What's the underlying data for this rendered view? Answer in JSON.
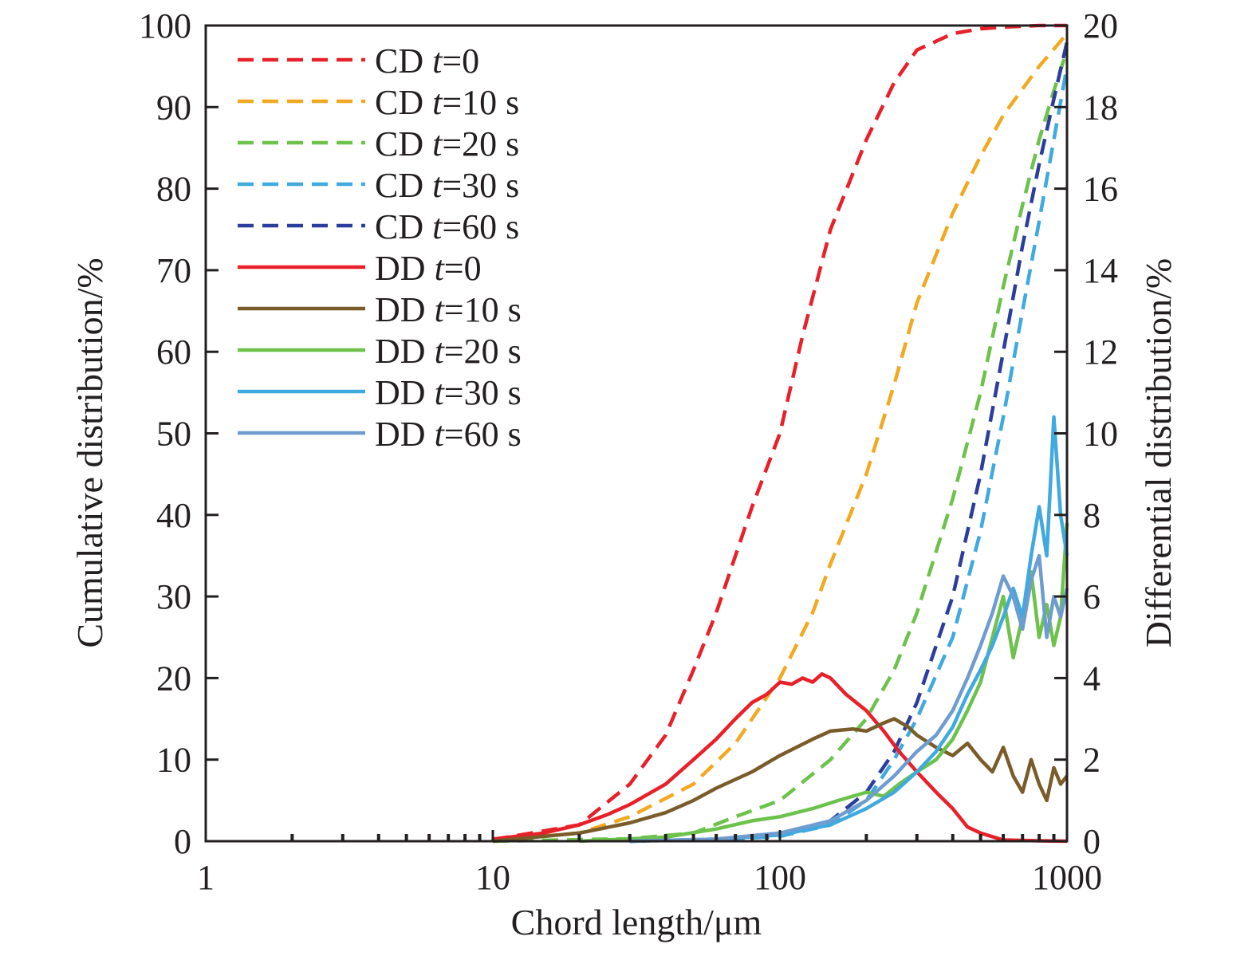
{
  "chart_data": {
    "type": "line",
    "title": "",
    "xlabel": "Chord length/μm",
    "ylabel_left": "Cumulative distribution/%",
    "ylabel_right": "Differential distribution/%",
    "x_scale": "log",
    "xlim": [
      1,
      1000
    ],
    "ylim_left": [
      0,
      100
    ],
    "ylim_right": [
      0,
      20
    ],
    "x_ticks": [
      1,
      10,
      100,
      1000
    ],
    "x_tick_labels": [
      "1",
      "10",
      "100",
      "1000"
    ],
    "y_left_ticks": [
      0,
      10,
      20,
      30,
      40,
      50,
      60,
      70,
      80,
      90,
      100
    ],
    "y_left_tick_labels": [
      "0",
      "10",
      "20",
      "30",
      "40",
      "50",
      "60",
      "70",
      "80",
      "90",
      "100"
    ],
    "y_right_ticks": [
      0,
      2,
      4,
      6,
      8,
      10,
      12,
      14,
      16,
      18,
      20
    ],
    "y_right_tick_labels": [
      "0",
      "2",
      "4",
      "6",
      "8",
      "10",
      "12",
      "14",
      "16",
      "18",
      "20"
    ],
    "grid": false,
    "legend_position": "top-left",
    "series": [
      {
        "name": "CD t=0",
        "label_prefix": "CD ",
        "label_var": "t",
        "label_suffix": "=0",
        "axis": "left",
        "style": "dashed",
        "color": "#e8202a",
        "x": [
          10,
          20,
          30,
          40,
          50,
          60,
          70,
          80,
          100,
          120,
          150,
          200,
          250,
          300,
          400,
          500,
          600,
          800,
          1000
        ],
        "y": [
          0.2,
          2,
          7,
          13,
          21,
          28,
          35,
          41,
          50,
          62,
          75,
          86,
          93,
          97,
          99,
          99.6,
          99.8,
          100,
          100
        ]
      },
      {
        "name": "CD t=10 s",
        "label_prefix": "CD ",
        "label_var": "t",
        "label_suffix": "=10 s",
        "axis": "left",
        "style": "dashed",
        "color": "#f2a922",
        "x": [
          10,
          20,
          30,
          50,
          70,
          100,
          130,
          150,
          200,
          250,
          300,
          400,
          500,
          600,
          800,
          1000
        ],
        "y": [
          0.1,
          1,
          3,
          7,
          12,
          20,
          28,
          34,
          45,
          56,
          66,
          77,
          84,
          89,
          95,
          99
        ]
      },
      {
        "name": "CD t=20 s",
        "label_prefix": "CD ",
        "label_var": "t",
        "label_suffix": "=20 s",
        "axis": "left",
        "style": "dashed",
        "color": "#6cc24a",
        "x": [
          10,
          30,
          50,
          70,
          100,
          150,
          200,
          250,
          300,
          400,
          500,
          600,
          700,
          800,
          900,
          1000
        ],
        "y": [
          0,
          0.3,
          1,
          3,
          5,
          10,
          15,
          21,
          28,
          42,
          55,
          68,
          78,
          86,
          92,
          97
        ]
      },
      {
        "name": "CD t=30 s",
        "label_prefix": "CD ",
        "label_var": "t",
        "label_suffix": "=30 s",
        "axis": "left",
        "style": "dashed",
        "color": "#3fa9e0",
        "x": [
          30,
          60,
          100,
          150,
          200,
          250,
          300,
          400,
          500,
          600,
          700,
          800,
          900,
          1000
        ],
        "y": [
          0,
          0.2,
          0.6,
          2,
          5,
          10,
          15,
          25,
          38,
          52,
          65,
          76,
          86,
          95
        ]
      },
      {
        "name": "CD t=60 s",
        "label_prefix": "CD ",
        "label_var": "t",
        "label_suffix": "=60 s",
        "axis": "left",
        "style": "dashed",
        "color": "#2c3e9c",
        "x": [
          30,
          60,
          100,
          150,
          200,
          250,
          300,
          400,
          500,
          600,
          700,
          800,
          900,
          1000
        ],
        "y": [
          0,
          0.2,
          0.8,
          2.5,
          6,
          11,
          17,
          30,
          45,
          60,
          73,
          83,
          91,
          98
        ]
      },
      {
        "name": "DD t=0",
        "label_prefix": "DD ",
        "label_var": "t",
        "label_suffix": "=0",
        "axis": "right",
        "style": "solid",
        "color": "#e8202a",
        "x": [
          10,
          15,
          20,
          25,
          30,
          40,
          50,
          60,
          70,
          80,
          90,
          100,
          110,
          120,
          130,
          140,
          150,
          170,
          200,
          230,
          260,
          300,
          350,
          400,
          450,
          500,
          600,
          800,
          1000
        ],
        "y": [
          0.05,
          0.2,
          0.4,
          0.65,
          0.9,
          1.4,
          2.0,
          2.5,
          3.0,
          3.4,
          3.6,
          3.9,
          3.85,
          4.0,
          3.9,
          4.1,
          4.0,
          3.6,
          3.2,
          2.7,
          2.2,
          1.7,
          1.2,
          0.8,
          0.35,
          0.2,
          0.03,
          0.01,
          0
        ]
      },
      {
        "name": "DD t=10 s",
        "label_prefix": "DD ",
        "label_var": "t",
        "label_suffix": "=10 s",
        "axis": "right",
        "style": "solid",
        "color": "#7a5c2a",
        "x": [
          10,
          20,
          30,
          40,
          50,
          60,
          80,
          100,
          130,
          150,
          180,
          200,
          230,
          250,
          280,
          300,
          350,
          400,
          450,
          500,
          550,
          600,
          650,
          700,
          750,
          800,
          850,
          900,
          950,
          1000
        ],
        "y": [
          0,
          0.2,
          0.45,
          0.7,
          1.0,
          1.3,
          1.7,
          2.1,
          2.5,
          2.7,
          2.75,
          2.7,
          2.9,
          3.0,
          2.8,
          2.6,
          2.3,
          2.1,
          2.4,
          2.0,
          1.7,
          2.3,
          1.6,
          1.2,
          2.0,
          1.4,
          1.0,
          1.8,
          1.4,
          1.6
        ]
      },
      {
        "name": "DD t=20 s",
        "label_prefix": "DD ",
        "label_var": "t",
        "label_suffix": "=20 s",
        "axis": "right",
        "style": "solid",
        "color": "#6cc24a",
        "x": [
          20,
          40,
          60,
          80,
          100,
          130,
          160,
          200,
          230,
          260,
          300,
          350,
          400,
          450,
          500,
          550,
          600,
          650,
          700,
          750,
          800,
          850,
          900,
          950,
          1000
        ],
        "y": [
          0,
          0.1,
          0.3,
          0.5,
          0.6,
          0.8,
          1.0,
          1.2,
          1.1,
          1.4,
          1.7,
          2.0,
          2.5,
          3.2,
          3.9,
          5.0,
          6.0,
          4.5,
          5.5,
          6.6,
          5.0,
          5.8,
          4.8,
          5.5,
          7.8
        ]
      },
      {
        "name": "DD t=30 s",
        "label_prefix": "DD ",
        "label_var": "t",
        "label_suffix": "=30 s",
        "axis": "right",
        "style": "solid",
        "color": "#3fa9e0",
        "x": [
          30,
          60,
          100,
          150,
          200,
          250,
          300,
          350,
          400,
          450,
          500,
          550,
          600,
          650,
          700,
          750,
          800,
          850,
          900,
          950,
          1000
        ],
        "y": [
          0,
          0.05,
          0.15,
          0.4,
          0.8,
          1.2,
          1.7,
          2.2,
          2.8,
          3.6,
          4.2,
          4.8,
          5.5,
          6.2,
          5.5,
          7.0,
          8.2,
          7.0,
          10.4,
          8.0,
          7.0
        ]
      },
      {
        "name": "DD t=60 s",
        "label_prefix": "DD ",
        "label_var": "t",
        "label_suffix": "=60 s",
        "axis": "right",
        "style": "solid",
        "color": "#6f9ccf",
        "x": [
          30,
          60,
          100,
          150,
          200,
          250,
          300,
          350,
          400,
          450,
          500,
          550,
          600,
          650,
          700,
          750,
          800,
          850,
          900,
          950,
          1000
        ],
        "y": [
          0,
          0.05,
          0.2,
          0.5,
          1.0,
          1.6,
          2.2,
          2.6,
          3.2,
          4.0,
          4.8,
          5.6,
          6.5,
          6.0,
          5.2,
          6.4,
          7.0,
          5.0,
          6.0,
          5.5,
          6.2
        ]
      }
    ]
  }
}
